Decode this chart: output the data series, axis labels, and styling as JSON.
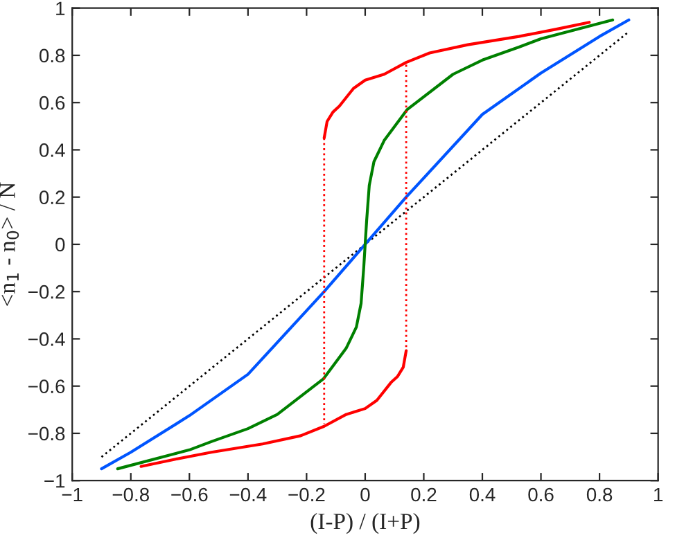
{
  "chart_data": {
    "type": "line",
    "xlabel": "(I-P) / (I+P)",
    "ylabel": "<n$_{1}$ - n$_{0}$> / N",
    "xlim": [
      -1,
      1
    ],
    "ylim": [
      -1,
      1
    ],
    "xticks": [
      {
        "value": -1,
        "label": "−1"
      },
      {
        "value": -0.8,
        "label": "−0.8"
      },
      {
        "value": -0.6,
        "label": "−0.6"
      },
      {
        "value": -0.4,
        "label": "−0.4"
      },
      {
        "value": -0.2,
        "label": "−0.2"
      },
      0,
      0.2,
      0.4,
      0.6,
      0.8,
      1
    ],
    "yticks": [
      {
        "value": -1,
        "label": "−1"
      },
      {
        "value": -0.8,
        "label": "−0.8"
      },
      {
        "value": -0.6,
        "label": "−0.6"
      },
      {
        "value": -0.4,
        "label": "−0.4"
      },
      {
        "value": -0.2,
        "label": "−0.2"
      },
      0,
      0.2,
      0.4,
      0.6,
      0.8,
      1
    ],
    "grid": false,
    "marker": "none",
    "line_style": "solid",
    "series": [
      {
        "color": "#000000",
        "line_style": "dotted",
        "x": [
          -0.9,
          0.9
        ],
        "values": [
          -0.9,
          0.9
        ]
      },
      {
        "color": "#0055ff",
        "x": [
          -0.9,
          -0.8,
          -0.6,
          -0.4,
          -0.14,
          0,
          0.14,
          0.4,
          0.6,
          0.8,
          0.9
        ],
        "values": [
          -0.95,
          -0.88,
          -0.725,
          -0.55,
          -0.2,
          0,
          0.2,
          0.55,
          0.725,
          0.88,
          0.95
        ]
      },
      {
        "color": "#008000",
        "x": [
          -0.845,
          -0.6,
          -0.525,
          -0.4,
          -0.3,
          -0.143,
          -0.065,
          -0.03,
          -0.014,
          -0.005,
          0,
          0.005,
          0.014,
          0.03,
          0.065,
          0.143,
          0.3,
          0.4,
          0.525,
          0.6,
          0.845
        ],
        "values": [
          -0.95,
          -0.87,
          -0.835,
          -0.78,
          -0.72,
          -0.57,
          -0.44,
          -0.35,
          -0.25,
          -0.1,
          0,
          0.1,
          0.25,
          0.35,
          0.44,
          0.57,
          0.72,
          0.78,
          0.835,
          0.87,
          0.95
        ]
      },
      {
        "color": "#ff0000",
        "x": [
          -0.14,
          -0.13,
          -0.11,
          -0.088,
          -0.04,
          0,
          0.065,
          0.14,
          0.22,
          0.35,
          0.525,
          0.65,
          0.765
        ],
        "values": [
          0.45,
          0.52,
          0.56,
          0.585,
          0.66,
          0.695,
          0.72,
          0.77,
          0.81,
          0.845,
          0.88,
          0.91,
          0.94
        ]
      },
      {
        "color": "#ff0000",
        "x": [
          -0.765,
          -0.65,
          -0.525,
          -0.35,
          -0.22,
          -0.14,
          -0.065,
          0,
          0.04,
          0.088,
          0.11,
          0.13,
          0.14
        ],
        "values": [
          -0.94,
          -0.91,
          -0.88,
          -0.845,
          -0.81,
          -0.77,
          -0.72,
          -0.695,
          -0.66,
          -0.585,
          -0.56,
          -0.52,
          -0.45
        ]
      },
      {
        "color": "#ff0000",
        "line_style": "dotted",
        "x": [
          0.14,
          0.14
        ],
        "values": [
          0.76,
          -0.45
        ]
      },
      {
        "color": "#ff0000",
        "line_style": "dotted",
        "x": [
          -0.14,
          -0.14
        ],
        "values": [
          0.45,
          -0.76
        ]
      }
    ]
  }
}
